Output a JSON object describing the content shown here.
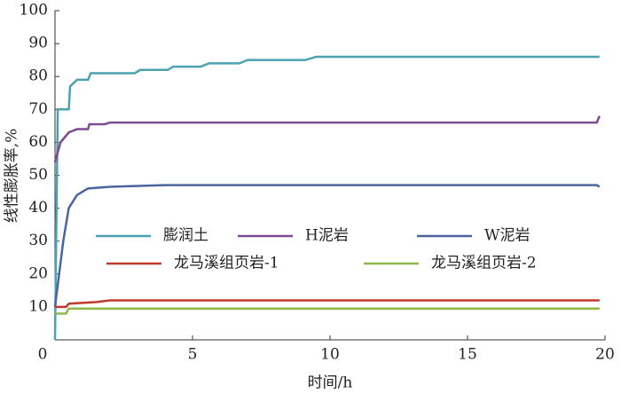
{
  "chart_data": {
    "type": "line",
    "x_label": "时间/h",
    "y_label": "线性膨胀率,%",
    "xlim": [
      0,
      20
    ],
    "ylim": [
      0,
      100
    ],
    "xticks": [
      0,
      5,
      10,
      15,
      20
    ],
    "yticks": [
      10,
      20,
      30,
      40,
      50,
      60,
      70,
      80,
      90,
      100
    ],
    "series": [
      {
        "name": "膨润土",
        "color": "#4ba3b1",
        "x": [
          0,
          0.1,
          0.5,
          0.55,
          0.8,
          1.2,
          1.3,
          2.9,
          3.1,
          4.1,
          4.3,
          5.3,
          5.6,
          6.7,
          7,
          9.1,
          9.5,
          19.8
        ],
        "values": [
          0,
          70,
          70,
          77,
          79,
          79,
          81,
          81,
          82,
          82,
          83,
          83,
          84,
          84,
          85,
          85,
          86,
          86
        ]
      },
      {
        "name": "H泥岩",
        "color": "#7d4b8f",
        "x": [
          0,
          0.2,
          0.5,
          0.8,
          1.2,
          1.25,
          1.8,
          2,
          19.7,
          19.8
        ],
        "values": [
          54,
          60,
          63,
          64,
          64,
          65.5,
          65.5,
          66,
          66,
          68
        ]
      },
      {
        "name": "W泥岩",
        "color": "#4a64a0",
        "x": [
          0,
          0.3,
          0.5,
          0.8,
          1.2,
          2,
          4,
          19.7,
          19.8
        ],
        "values": [
          10,
          30,
          40,
          44,
          46,
          46.5,
          47,
          47,
          46.5
        ]
      },
      {
        "name": "龙马溪组页岩-1",
        "color": "#c0392b",
        "x": [
          0,
          0.4,
          0.5,
          1.5,
          2,
          19.8
        ],
        "values": [
          10,
          10,
          11,
          11.5,
          12,
          12
        ]
      },
      {
        "name": "龙马溪组页岩-2",
        "color": "#8db84a",
        "x": [
          0,
          0.4,
          0.5,
          19.8
        ],
        "values": [
          8,
          8,
          9.5,
          9.5
        ]
      }
    ]
  }
}
